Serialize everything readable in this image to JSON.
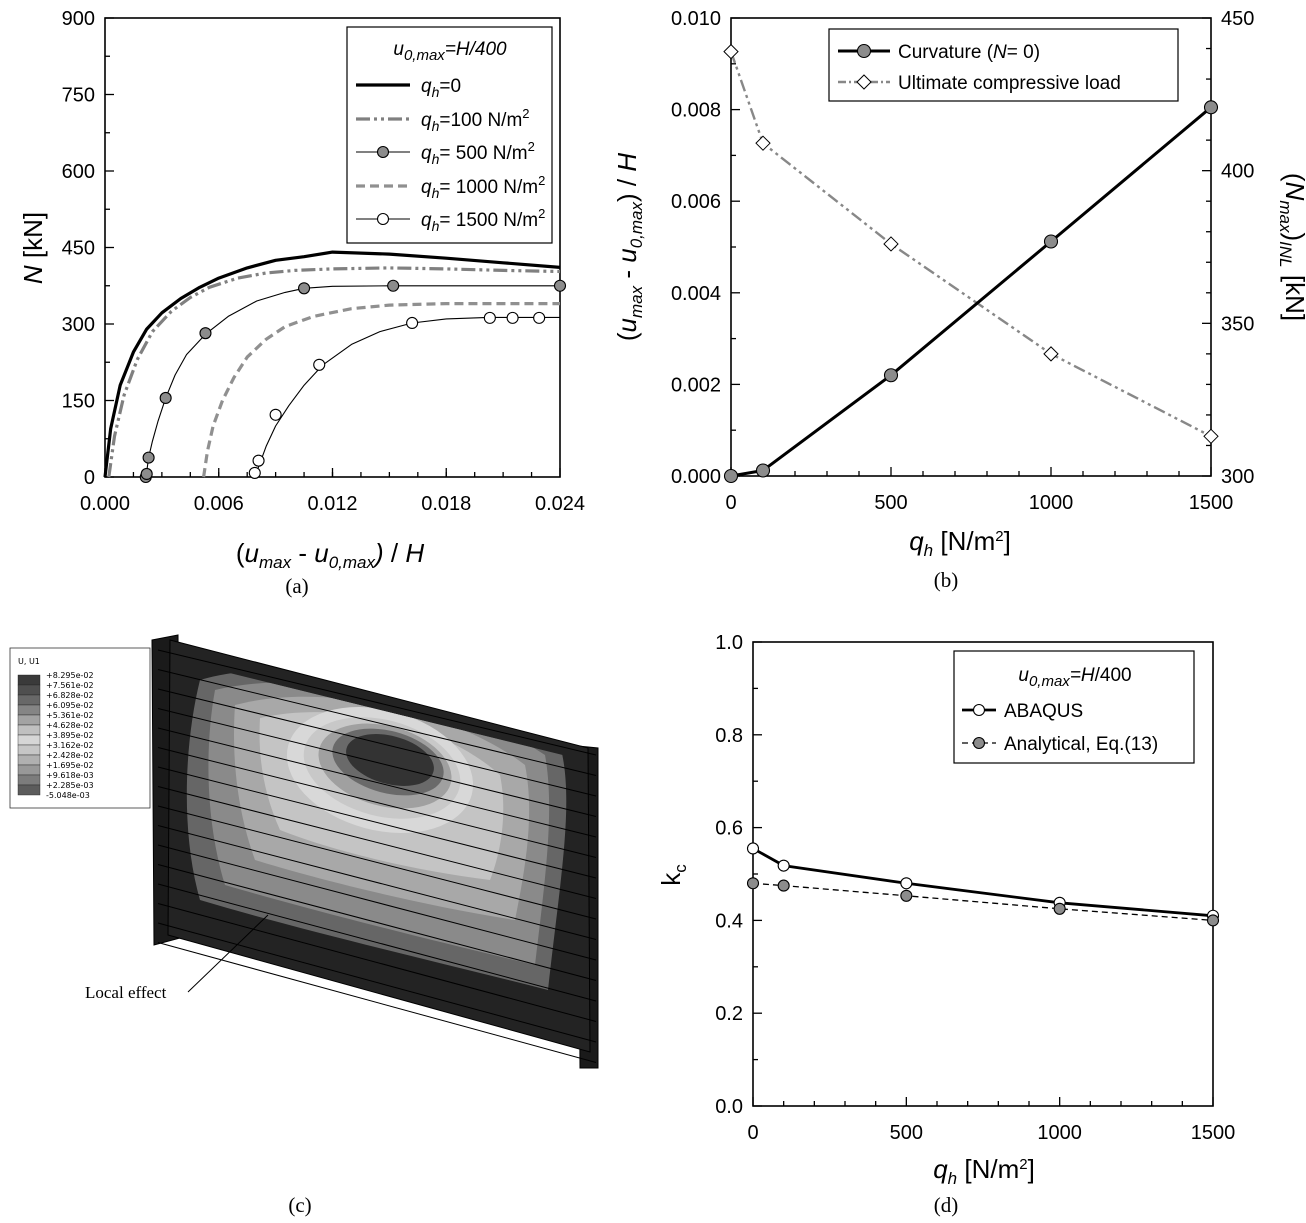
{
  "chart_data": [
    {
      "panel": "a",
      "type": "line",
      "xlim": [
        0,
        0.024
      ],
      "ylim": [
        0,
        900
      ],
      "x_ticks": [
        "0.000",
        "0.006",
        "0.012",
        "0.018",
        "0.024"
      ],
      "y_ticks": [
        "0",
        "150",
        "300",
        "450",
        "600",
        "750",
        "900"
      ],
      "ylabel": "N  [kN]",
      "xlabel": "(u_max - u_0,max) / H",
      "legend_title": "u0,max=H/400",
      "legend_placement": "top-right",
      "series": [
        {
          "name": "qh=0",
          "color": "#000000",
          "style": "solid-thick",
          "x": [
            0.0,
            0.0003,
            0.0008,
            0.0015,
            0.0022,
            0.003,
            0.004,
            0.005,
            0.006,
            0.0075,
            0.009,
            0.0105,
            0.012,
            0.015,
            0.018,
            0.021,
            0.024
          ],
          "y": [
            0,
            95,
            180,
            245,
            290,
            322,
            350,
            372,
            390,
            410,
            425,
            432,
            441,
            437,
            429,
            420,
            411
          ]
        },
        {
          "name": "qh=100 N/m2",
          "color": "#808080",
          "style": "dash-dot-dot",
          "x": [
            0.0002,
            0.0005,
            0.001,
            0.0017,
            0.0025,
            0.0035,
            0.0045,
            0.0055,
            0.007,
            0.0085,
            0.01,
            0.012,
            0.015,
            0.018,
            0.021,
            0.024
          ],
          "y": [
            0,
            80,
            160,
            230,
            285,
            325,
            352,
            372,
            390,
            400,
            405,
            408,
            410,
            408,
            405,
            403
          ]
        },
        {
          "name": "qh= 500 N/m2",
          "color": "#000000",
          "style": "thin-marker-grey",
          "x": [
            0.00215,
            0.0022,
            0.0023,
            0.0025,
            0.0028,
            0.0032,
            0.0037,
            0.0043,
            0.0053,
            0.0065,
            0.008,
            0.0095,
            0.0105,
            0.012,
            0.015,
            0.018,
            0.021,
            0.024
          ],
          "y": [
            0,
            10,
            38,
            70,
            110,
            155,
            200,
            240,
            280,
            315,
            345,
            362,
            370,
            374,
            375,
            375,
            375,
            375
          ],
          "marker_x": [
            0.00215,
            0.0022,
            0.0023,
            0.0032,
            0.0053,
            0.0105,
            0.0152,
            0.024
          ],
          "marker_y": [
            0,
            6,
            38,
            155,
            282,
            370,
            375,
            375
          ]
        },
        {
          "name": "qh= 1000 N/m2",
          "color": "#909090",
          "style": "dashed",
          "x": [
            0.0052,
            0.0054,
            0.0057,
            0.0062,
            0.0068,
            0.0075,
            0.0085,
            0.0095,
            0.011,
            0.013,
            0.015,
            0.018,
            0.021,
            0.024
          ],
          "y": [
            0,
            50,
            100,
            150,
            195,
            235,
            270,
            295,
            315,
            330,
            337,
            340,
            340,
            340
          ]
        },
        {
          "name": "qh= 1500 N/m2",
          "color": "#000000",
          "style": "thin-marker-white",
          "x": [
            0.0079,
            0.008,
            0.0082,
            0.0085,
            0.009,
            0.0097,
            0.0105,
            0.0115,
            0.013,
            0.0145,
            0.0162,
            0.018,
            0.0202,
            0.022,
            0.024
          ],
          "y": [
            0,
            10,
            30,
            60,
            100,
            140,
            180,
            220,
            260,
            285,
            302,
            310,
            313,
            313,
            313
          ],
          "marker_x": [
            0.0079,
            0.0081,
            0.009,
            0.0113,
            0.0162,
            0.0203,
            0.0215,
            0.0229
          ],
          "marker_y": [
            8,
            32,
            122,
            220,
            302,
            312,
            312,
            312
          ]
        }
      ]
    },
    {
      "panel": "b",
      "type": "line",
      "xlim": [
        0,
        1500
      ],
      "ylim": [
        0,
        0.01
      ],
      "y2lim": [
        300,
        450
      ],
      "x_ticks": [
        "0",
        "500",
        "1000",
        "1500"
      ],
      "y_ticks": [
        "0.000",
        "0.002",
        "0.004",
        "0.006",
        "0.008",
        "0.010"
      ],
      "y2_ticks": [
        "300",
        "350",
        "400",
        "450"
      ],
      "xlabel": "qh  [N/m2]",
      "ylabel": "(u_max - u_0,max) / H",
      "y2label": "(N_max)_INL  [kN]",
      "legend_placement": "top-right",
      "series": [
        {
          "name": "Curvature (N= 0)",
          "axis": "left",
          "color": "#000000",
          "marker": "circle-grey",
          "x": [
            0,
            100,
            500,
            1000,
            1500
          ],
          "y": [
            0.0,
            0.00012,
            0.0022,
            0.00512,
            0.00805
          ]
        },
        {
          "name": "Ultimate compressive load",
          "axis": "right",
          "color": "#888888",
          "marker": "diamond-white",
          "x": [
            0,
            100,
            500,
            1000,
            1500
          ],
          "y": [
            439,
            409,
            376,
            340,
            313
          ]
        }
      ]
    },
    {
      "panel": "d",
      "type": "line",
      "xlim": [
        0,
        1500
      ],
      "ylim": [
        0,
        1.0
      ],
      "x_ticks": [
        "0",
        "500",
        "1000",
        "1500"
      ],
      "y_ticks": [
        "0.0",
        "0.2",
        "0.4",
        "0.6",
        "0.8",
        "1.0"
      ],
      "xlabel": "qh  [N/m2]",
      "ylabel": "kc",
      "legend_title": "u0,max=H/400",
      "legend_placement": "top-right",
      "series": [
        {
          "name": "ABAQUS",
          "color": "#000000",
          "style": "solid",
          "marker": "circle-white",
          "x": [
            0,
            100,
            500,
            1000,
            1500
          ],
          "y": [
            0.555,
            0.518,
            0.48,
            0.438,
            0.41
          ]
        },
        {
          "name": "Analytical, Eq.(13)",
          "color": "#000000",
          "style": "dashed",
          "marker": "circle-grey",
          "x": [
            0,
            100,
            500,
            1000,
            1500
          ],
          "y": [
            0.48,
            0.475,
            0.453,
            0.425,
            0.4
          ]
        }
      ]
    }
  ],
  "captions": {
    "a": "(a)",
    "b": "(b)",
    "c": "(c)",
    "d": "(d)"
  },
  "panel_c": {
    "colorbar_title": "U, U1",
    "colorbar_labels": [
      "+8.295e-02",
      "+7.561e-02",
      "+6.828e-02",
      "+6.095e-02",
      "+5.361e-02",
      "+4.628e-02",
      "+3.895e-02",
      "+3.162e-02",
      "+2.428e-02",
      "+1.695e-02",
      "+9.618e-03",
      "+2.285e-03",
      "-5.048e-03"
    ],
    "colorbar_colors": [
      "#3a3a3a",
      "#4f4f4f",
      "#686868",
      "#858585",
      "#a3a3a3",
      "#c0c0c0",
      "#d6d6d6",
      "#c6c6c6",
      "#b0b0b0",
      "#989898",
      "#7c7c7c",
      "#5c5c5c",
      "#1f1f1f"
    ],
    "annotation": "Local effect"
  }
}
